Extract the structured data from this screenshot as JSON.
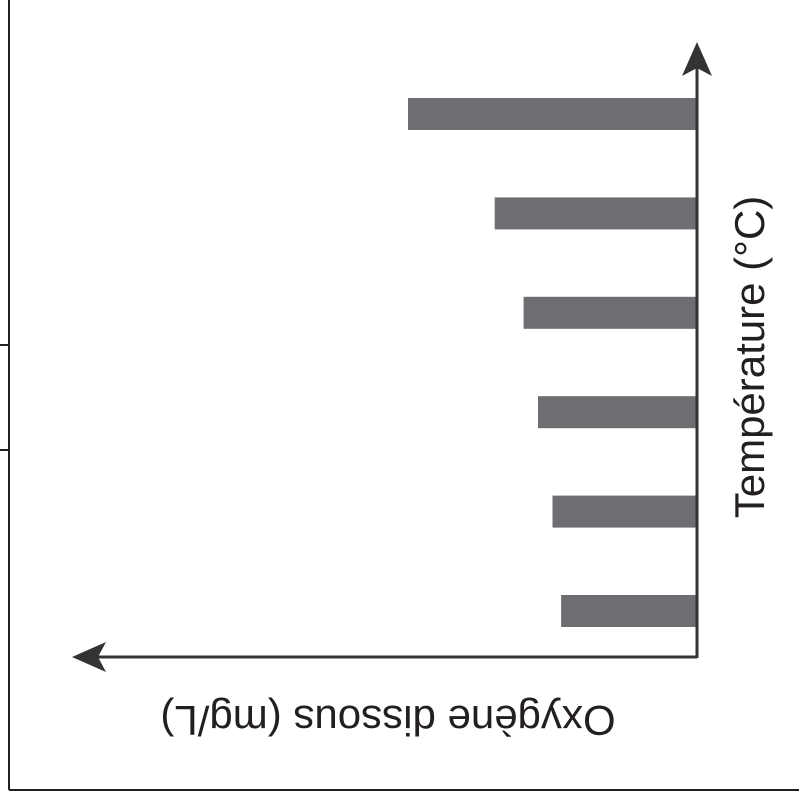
{
  "chart_data": {
    "type": "bar",
    "orientation": "horizontal",
    "rendering": "image rotated 180 degrees",
    "xlabel": "Oxygène dissous (mg/L)",
    "ylabel": "Température (°C)",
    "categories": [
      "",
      "",
      "",
      "",
      "",
      ""
    ],
    "values": [
      10,
      7,
      6,
      5.5,
      5,
      4.7
    ],
    "xlim": [
      0,
      21
    ],
    "grid": false,
    "legend": "none",
    "colors": {
      "bar": "#6d6e71",
      "axis": "#333333",
      "frame": "#231f20",
      "text": "#231f20"
    }
  }
}
